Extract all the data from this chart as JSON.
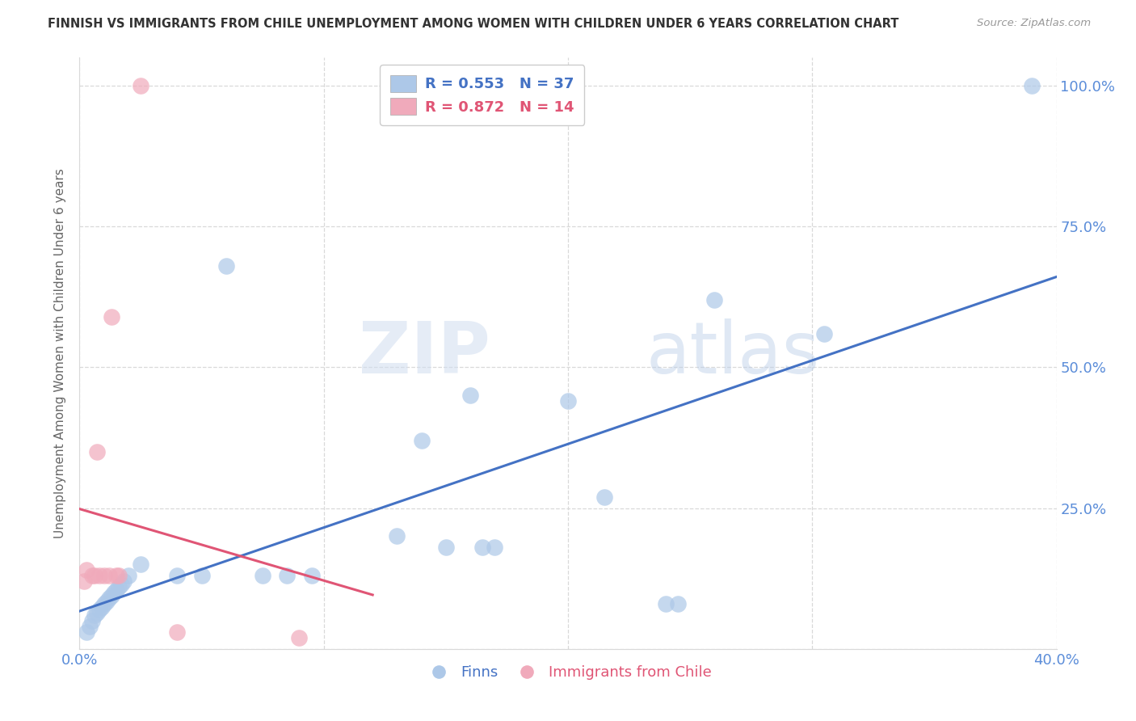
{
  "title": "FINNISH VS IMMIGRANTS FROM CHILE UNEMPLOYMENT AMONG WOMEN WITH CHILDREN UNDER 6 YEARS CORRELATION CHART",
  "source": "Source: ZipAtlas.com",
  "ylabel": "Unemployment Among Women with Children Under 6 years",
  "xlim": [
    0.0,
    0.4
  ],
  "ylim": [
    0.0,
    1.05
  ],
  "R_finn": 0.553,
  "N_finn": 37,
  "R_chile": 0.872,
  "N_chile": 14,
  "blue_color": "#adc8e8",
  "pink_color": "#f0aabb",
  "blue_line_color": "#4472c4",
  "pink_line_color": "#e05575",
  "axis_label_color": "#5b8dd9",
  "grid_color": "#d9d9d9",
  "finns_x": [
    0.003,
    0.004,
    0.005,
    0.006,
    0.007,
    0.008,
    0.009,
    0.01,
    0.011,
    0.012,
    0.013,
    0.014,
    0.015,
    0.016,
    0.017,
    0.018,
    0.02,
    0.025,
    0.04,
    0.05,
    0.06,
    0.075,
    0.085,
    0.095,
    0.13,
    0.14,
    0.15,
    0.16,
    0.165,
    0.17,
    0.2,
    0.215,
    0.24,
    0.245,
    0.26,
    0.305,
    0.39
  ],
  "finns_y": [
    0.03,
    0.04,
    0.05,
    0.06,
    0.065,
    0.07,
    0.075,
    0.08,
    0.085,
    0.09,
    0.095,
    0.1,
    0.105,
    0.11,
    0.115,
    0.12,
    0.13,
    0.15,
    0.13,
    0.13,
    0.68,
    0.13,
    0.13,
    0.13,
    0.2,
    0.37,
    0.18,
    0.45,
    0.18,
    0.18,
    0.44,
    0.27,
    0.08,
    0.08,
    0.62,
    0.56,
    1.0
  ],
  "chile_x": [
    0.002,
    0.003,
    0.005,
    0.006,
    0.007,
    0.008,
    0.01,
    0.012,
    0.013,
    0.015,
    0.016,
    0.025,
    0.04,
    0.09
  ],
  "chile_y": [
    0.12,
    0.14,
    0.13,
    0.13,
    0.35,
    0.13,
    0.13,
    0.13,
    0.59,
    0.13,
    0.13,
    1.0,
    0.03,
    0.02
  ]
}
